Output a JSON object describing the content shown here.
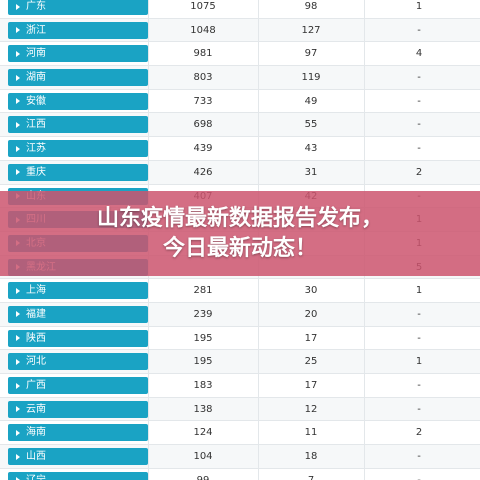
{
  "table": {
    "rows": [
      {
        "province": "广东",
        "col1": "1075",
        "col2": "98",
        "col3": "1"
      },
      {
        "province": "浙江",
        "col1": "1048",
        "col2": "127",
        "col3": "-"
      },
      {
        "province": "河南",
        "col1": "981",
        "col2": "97",
        "col3": "4"
      },
      {
        "province": "湖南",
        "col1": "803",
        "col2": "119",
        "col3": "-"
      },
      {
        "province": "安徽",
        "col1": "733",
        "col2": "49",
        "col3": "-"
      },
      {
        "province": "江西",
        "col1": "698",
        "col2": "55",
        "col3": "-"
      },
      {
        "province": "江苏",
        "col1": "439",
        "col2": "43",
        "col3": "-"
      },
      {
        "province": "重庆",
        "col1": "426",
        "col2": "31",
        "col3": "2"
      },
      {
        "province": "山东",
        "col1": "407",
        "col2": "42",
        "col3": "-"
      },
      {
        "province": "四川",
        "col1": "",
        "col2": "",
        "col3": "1"
      },
      {
        "province": "北京",
        "col1": "",
        "col2": "",
        "col3": "1"
      },
      {
        "province": "黑龙江",
        "col1": "",
        "col2": "",
        "col3": "5"
      },
      {
        "province": "上海",
        "col1": "281",
        "col2": "30",
        "col3": "1"
      },
      {
        "province": "福建",
        "col1": "239",
        "col2": "20",
        "col3": "-"
      },
      {
        "province": "陕西",
        "col1": "195",
        "col2": "17",
        "col3": "-"
      },
      {
        "province": "河北",
        "col1": "195",
        "col2": "25",
        "col3": "1"
      },
      {
        "province": "广西",
        "col1": "183",
        "col2": "17",
        "col3": "-"
      },
      {
        "province": "云南",
        "col1": "138",
        "col2": "12",
        "col3": "-"
      },
      {
        "province": "海南",
        "col1": "124",
        "col2": "11",
        "col3": "2"
      },
      {
        "province": "山西",
        "col1": "104",
        "col2": "18",
        "col3": "-"
      },
      {
        "province": "辽宁",
        "col1": "99",
        "col2": "7",
        "col3": "-"
      }
    ]
  },
  "headline": {
    "line1": "山东疫情最新数据报告发布，",
    "line2": "今日最新动态！"
  },
  "colors": {
    "province_badge": "#1aa3c4",
    "overlay": "#cd556e"
  },
  "icons": {
    "row_marker": "caret-right-icon"
  }
}
